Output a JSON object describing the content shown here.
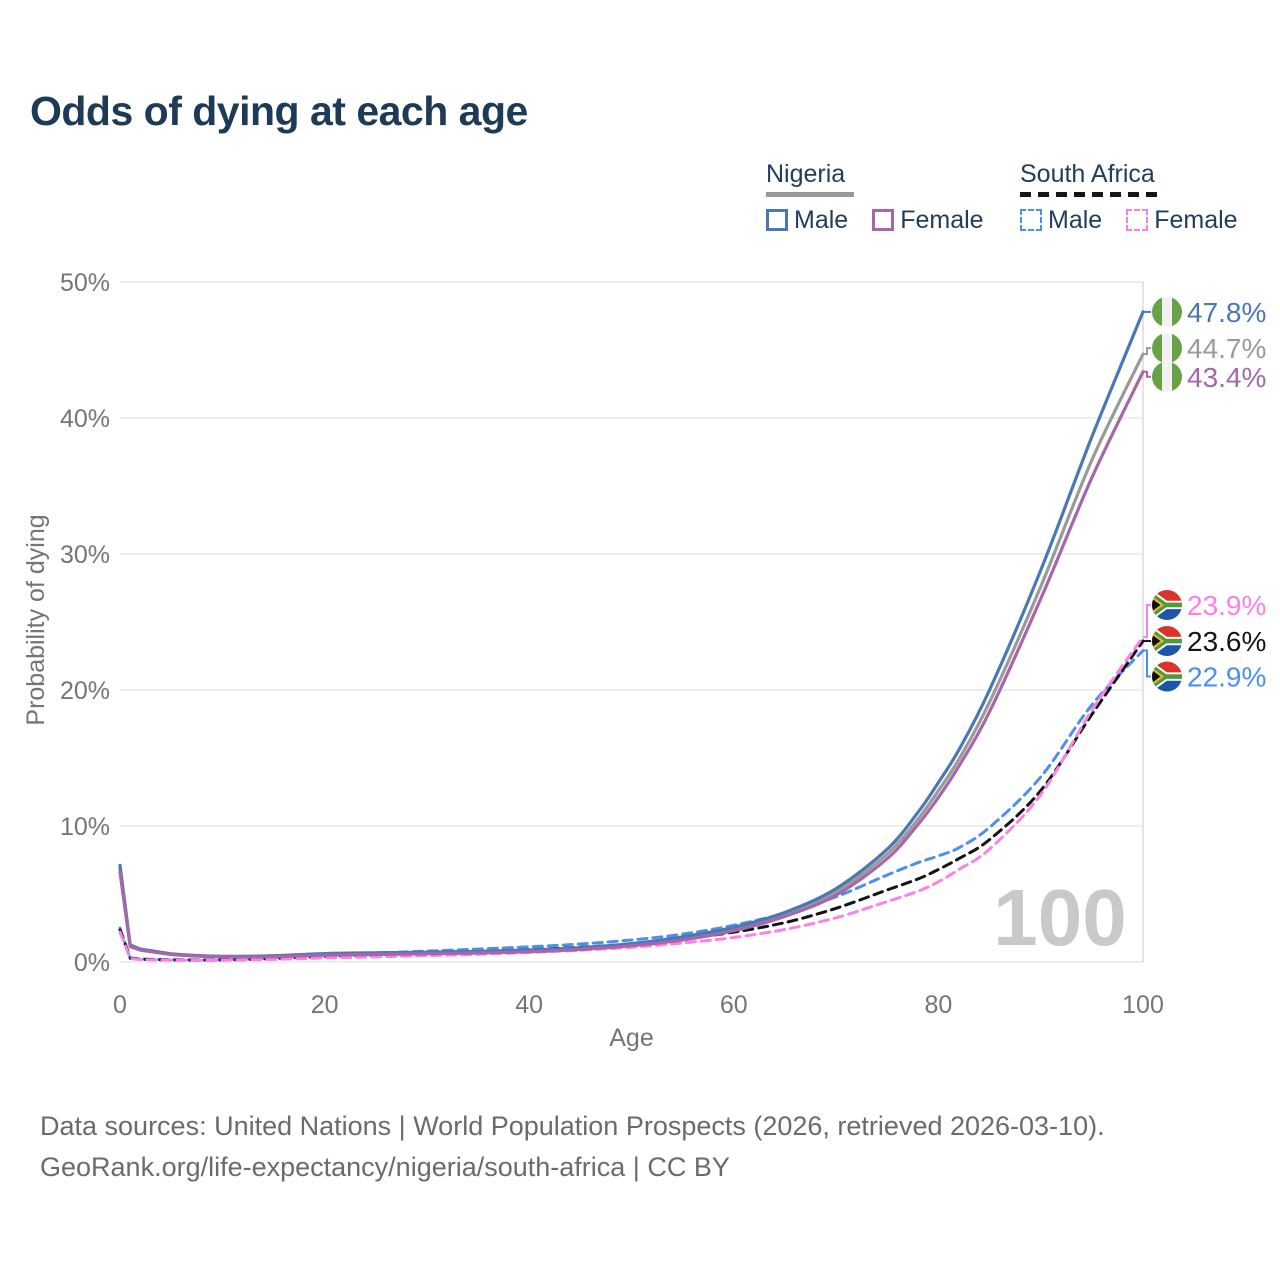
{
  "title": "Odds of dying at each age",
  "legend": {
    "groups": [
      {
        "country": "Nigeria",
        "line_style": "solid",
        "underline_color": "#999999",
        "items": [
          {
            "label": "Male",
            "color": "#4a78b5"
          },
          {
            "label": "Female",
            "color": "#a766a9"
          }
        ]
      },
      {
        "country": "South Africa",
        "line_style": "dashed",
        "underline_color": "#161616",
        "items": [
          {
            "label": "Male",
            "color": "#4b90f0"
          },
          {
            "label": "Female",
            "color": "#fb80e8"
          }
        ]
      }
    ]
  },
  "chart_data": {
    "type": "line",
    "title": "Odds of dying at each age",
    "xlabel": "Age",
    "ylabel": "Probability of dying",
    "xlim": [
      0,
      100
    ],
    "ylim": [
      0,
      50
    ],
    "x_ticks": [
      0,
      20,
      40,
      60,
      80,
      100
    ],
    "y_grid": [
      0,
      10,
      20,
      30,
      40,
      50
    ],
    "y_ticks": [
      "0%",
      "10%",
      "20%",
      "30%",
      "40%",
      "50%"
    ],
    "grid": "horizontal",
    "legend_position": "top-right",
    "hover_age_watermark": "100",
    "watermark_color": "#c9c9c9",
    "x": [
      0,
      1,
      2,
      5,
      10,
      15,
      20,
      25,
      30,
      35,
      40,
      45,
      50,
      55,
      60,
      65,
      70,
      75,
      78,
      80,
      82,
      85,
      90,
      95,
      100
    ],
    "series": [
      {
        "id": "south-africa-male",
        "name": "South Africa Male",
        "color": "#4b90f0",
        "dash": "dashed",
        "flag": "south-africa",
        "end_label": "22.9%",
        "label_dy": 26,
        "values": [
          2.5,
          0.3,
          0.22,
          0.17,
          0.17,
          0.3,
          0.52,
          0.66,
          0.8,
          0.95,
          1.12,
          1.32,
          1.62,
          2.05,
          2.7,
          3.6,
          4.8,
          6.4,
          7.3,
          7.8,
          8.4,
          9.9,
          13.6,
          18.9,
          22.9
        ]
      },
      {
        "id": "south-africa-combined",
        "name": "South Africa (both sexes)",
        "color": "#141414",
        "dash": "dashed",
        "flag": "south-africa",
        "end_label": "23.6%",
        "label_dy": 0,
        "values": [
          2.35,
          0.28,
          0.2,
          0.15,
          0.15,
          0.25,
          0.42,
          0.53,
          0.63,
          0.75,
          0.9,
          1.08,
          1.33,
          1.7,
          2.2,
          2.9,
          3.95,
          5.3,
          6.1,
          6.8,
          7.6,
          9.0,
          12.6,
          18.2,
          23.6
        ]
      },
      {
        "id": "south-africa-female",
        "name": "South Africa Female",
        "color": "#fb80e8",
        "dash": "dashed",
        "flag": "south-africa",
        "end_label": "23.9%",
        "label_dy": -32,
        "values": [
          2.2,
          0.26,
          0.18,
          0.13,
          0.13,
          0.19,
          0.3,
          0.38,
          0.47,
          0.57,
          0.7,
          0.87,
          1.08,
          1.4,
          1.8,
          2.4,
          3.25,
          4.45,
          5.2,
          5.9,
          6.8,
          8.3,
          12.3,
          18.5,
          23.9
        ]
      },
      {
        "id": "nigeria-combined",
        "name": "Nigeria (both sexes)",
        "color": "#9a9a9a",
        "dash": "solid",
        "flag": "nigeria",
        "end_label": "44.7%",
        "label_dy": -6,
        "values": [
          6.85,
          1.2,
          0.9,
          0.57,
          0.4,
          0.43,
          0.56,
          0.62,
          0.66,
          0.72,
          0.82,
          0.98,
          1.28,
          1.73,
          2.42,
          3.5,
          5.15,
          7.95,
          10.5,
          12.6,
          14.9,
          19.1,
          27.6,
          36.9,
          44.7
        ]
      },
      {
        "id": "nigeria-male",
        "name": "Nigeria Male",
        "color": "#4a78b5",
        "dash": "solid",
        "flag": "nigeria",
        "end_label": "47.8%",
        "label_dy": 0,
        "values": [
          7.1,
          1.25,
          0.95,
          0.6,
          0.42,
          0.46,
          0.62,
          0.68,
          0.72,
          0.78,
          0.88,
          1.05,
          1.35,
          1.85,
          2.55,
          3.65,
          5.4,
          8.3,
          11.0,
          13.2,
          15.6,
          20.0,
          28.8,
          38.6,
          47.8
        ]
      },
      {
        "id": "nigeria-female",
        "name": "Nigeria Female",
        "color": "#a766a9",
        "dash": "solid",
        "flag": "nigeria",
        "end_label": "43.4%",
        "label_dy": 5,
        "values": [
          6.6,
          1.15,
          0.87,
          0.55,
          0.38,
          0.4,
          0.5,
          0.56,
          0.6,
          0.66,
          0.76,
          0.92,
          1.2,
          1.62,
          2.3,
          3.35,
          4.92,
          7.6,
          10.1,
          12.1,
          14.4,
          18.4,
          26.7,
          35.6,
          43.4
        ]
      }
    ]
  },
  "footer": {
    "line1": "Data sources: United Nations | World Population Prospects (2026, retrieved 2026-03-10).",
    "line2": "GeoRank.org/life-expectancy/nigeria/south-africa | CC BY"
  },
  "colors": {
    "title": "#1d3a57",
    "axis_text": "#757575",
    "gridline": "#e8e8e8",
    "footer_text": "#6b6b6b"
  }
}
